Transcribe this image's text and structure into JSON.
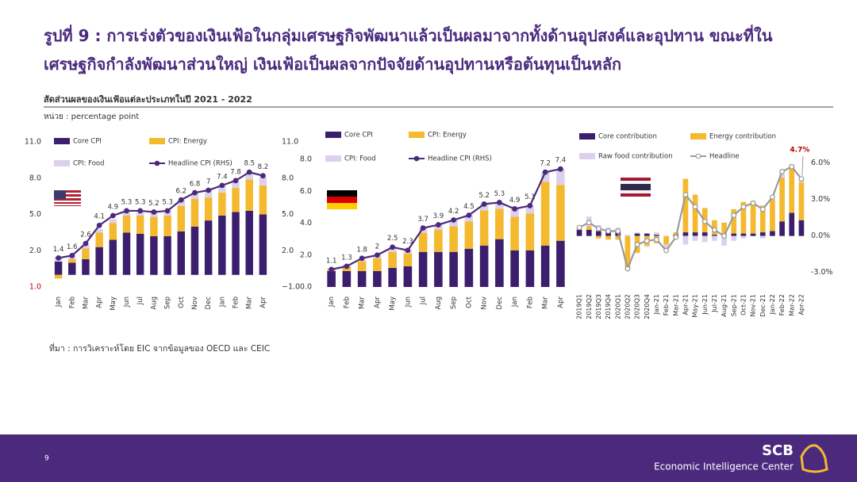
{
  "title_lines": [
    "รูปที่ 9 : การเร่งตัวของเงินเฟ้อในกลุ่มเศรษฐกิจพัฒนาแล้วเป็นผลมาจากทั้งด้านอุปสงค์และอุปทาน  ขณะที่ใน",
    "เศรษฐกิจกำลังพัฒนาส่วนใหญ่  เงินเฟ้อเป็นผลจากปัจจัยด้านอุปทานหรือต้นทุนเป็นหลัก"
  ],
  "subtitle": "สัดส่วนผลของเงินเฟ้อแต่ละประเภทในปี  2021 - 2022",
  "unit": "หน่วย : percentage point",
  "source": "ที่มา : การวิเคราะห์โดย EIC จากข้อมูลของ OECD และ CEIC",
  "page_number": "9",
  "brand": "SCB",
  "brand_sub": "Economic Intelligence Center",
  "chart_data": [
    {
      "type": "bar",
      "stacked": true,
      "data_labels": true,
      "categories": [
        "Jan",
        "Feb",
        "Mar",
        "Apr",
        "May",
        "Jun",
        "Jul",
        "Aug",
        "Sep",
        "Oct",
        "Nov",
        "Dec",
        "Jan",
        "Feb",
        "Mar",
        "Apr"
      ],
      "ylim": [
        -1,
        11
      ],
      "yticks": [
        {
          "value": -1,
          "label": "1.0",
          "color": "#c00000"
        },
        {
          "value": 2,
          "label": "2.0"
        },
        {
          "value": 5,
          "label": "5.0"
        },
        {
          "value": 8,
          "label": "8.0"
        },
        {
          "value": 11,
          "label": "11.0"
        }
      ],
      "y2lim": [
        -1,
        11
      ],
      "y2ticks": [
        {
          "value": -1,
          "label": "−1.0"
        },
        {
          "value": 2,
          "label": "2.0"
        },
        {
          "value": 5,
          "label": "5.0"
        },
        {
          "value": 8,
          "label": "8.0"
        },
        {
          "value": 11,
          "label": "11.0"
        }
      ],
      "series": [
        {
          "name": "Core CPI",
          "color": "#3b1f6e",
          "values": [
            1.1,
            1.0,
            1.3,
            2.3,
            2.9,
            3.5,
            3.4,
            3.2,
            3.2,
            3.6,
            4.0,
            4.5,
            4.9,
            5.2,
            5.3,
            5.0
          ]
        },
        {
          "name": "CPI: Energy",
          "color": "#f4b92e",
          "values": [
            -0.3,
            0.3,
            0.9,
            1.2,
            1.4,
            1.4,
            1.5,
            1.6,
            1.7,
            2.1,
            2.3,
            1.9,
            1.9,
            2.0,
            2.6,
            2.4
          ]
        },
        {
          "name": "CPI: Food",
          "color": "#ddd0ee",
          "values": [
            0.4,
            0.3,
            0.3,
            0.3,
            0.3,
            0.3,
            0.3,
            0.4,
            0.4,
            0.5,
            0.5,
            0.6,
            0.6,
            0.6,
            0.6,
            0.7
          ]
        },
        {
          "name": "Headline CPI (RHS)",
          "color": "#4a2a7a",
          "type": "line",
          "axis": "y2",
          "values": [
            1.4,
            1.6,
            2.6,
            4.1,
            4.9,
            5.3,
            5.3,
            5.2,
            5.3,
            6.2,
            6.8,
            7.0,
            7.4,
            7.8,
            8.5,
            8.2
          ]
        }
      ]
    },
    {
      "type": "bar",
      "stacked": true,
      "data_labels": true,
      "categories": [
        "Jan",
        "Feb",
        "Mar",
        "Apr",
        "May",
        "Jun",
        "Jul",
        "Aug",
        "Sep",
        "Oct",
        "Nov",
        "Dec",
        "Jan",
        "Feb",
        "Mar",
        "Apr"
      ],
      "ylim": [
        0,
        9
      ],
      "yticks": [
        {
          "value": 0,
          "label": "0.0"
        },
        {
          "value": 2,
          "label": "2.0"
        },
        {
          "value": 4,
          "label": "4.0"
        },
        {
          "value": 6,
          "label": "6.0"
        },
        {
          "value": 8,
          "label": "8.0"
        }
      ],
      "series": [
        {
          "name": "Core CPI",
          "color": "#3b1f6e",
          "values": [
            1.0,
            1.0,
            1.0,
            1.0,
            1.2,
            1.3,
            2.2,
            2.2,
            2.2,
            2.4,
            2.6,
            3.0,
            2.3,
            2.3,
            2.6,
            2.9
          ]
        },
        {
          "name": "CPI: Energy",
          "color": "#f4b92e",
          "values": [
            0.1,
            0.3,
            0.6,
            0.8,
            1.0,
            0.8,
            1.2,
            1.4,
            1.6,
            1.7,
            2.2,
            1.9,
            2.1,
            2.3,
            4.0,
            3.5
          ]
        },
        {
          "name": "CPI: Food",
          "color": "#ddd0ee",
          "values": [
            0.1,
            0.1,
            0.1,
            0.2,
            0.2,
            0.2,
            0.3,
            0.3,
            0.4,
            0.4,
            0.4,
            0.4,
            0.5,
            0.5,
            0.6,
            1.0
          ]
        },
        {
          "name": "Headline CPI (RHS)",
          "color": "#4a2a7a",
          "type": "line",
          "values": [
            1.1,
            1.3,
            1.8,
            2.0,
            2.5,
            2.3,
            3.7,
            3.9,
            4.2,
            4.5,
            5.2,
            5.3,
            4.9,
            5.1,
            7.2,
            7.4
          ]
        }
      ]
    },
    {
      "type": "bar",
      "stacked": true,
      "data_labels": false,
      "annotation": "4.7%",
      "categories": [
        "2019Q1",
        "2019Q2",
        "2019Q3",
        "2019Q4",
        "2020Q1",
        "2020Q2",
        "2020Q3",
        "2020Q4",
        "Jan-21",
        "Feb-21",
        "Mar-21",
        "Apr-21",
        "May-21",
        "Jun-21",
        "Jul-21",
        "Aug-21",
        "Sep-21",
        "Oct-21",
        "Nov-21",
        "Dec-21",
        "Jan-22",
        "Feb-22",
        "Mar-22",
        "Apr-22"
      ],
      "ylim": [
        -4,
        8
      ],
      "yticks": [
        {
          "value": -3,
          "label": "-3.0%"
        },
        {
          "value": 0,
          "label": "0.0%"
        },
        {
          "value": 3,
          "label": "3.0%"
        },
        {
          "value": 6,
          "label": "6.0%"
        }
      ],
      "series": [
        {
          "name": "Core contribution",
          "color": "#3b1f6e",
          "values": [
            0.5,
            0.5,
            0.4,
            0.4,
            0.4,
            0.0,
            0.2,
            0.2,
            0.1,
            0.0,
            0.1,
            0.3,
            0.3,
            0.3,
            0.1,
            0.1,
            0.2,
            0.2,
            0.2,
            0.3,
            0.4,
            1.2,
            1.9,
            1.3
          ]
        },
        {
          "name": "Energy contribution",
          "color": "#f4b92e",
          "values": [
            0.2,
            0.3,
            -0.2,
            -0.3,
            -0.3,
            -2.8,
            -1.4,
            -0.8,
            -0.6,
            -0.7,
            0.2,
            4.4,
            3.1,
            2.0,
            1.2,
            1.0,
            2.0,
            2.6,
            2.6,
            2.2,
            2.6,
            3.6,
            3.9,
            3.1
          ]
        },
        {
          "name": "Raw food contribution",
          "color": "#ddd0ee",
          "values": [
            0.0,
            0.8,
            0.5,
            0.3,
            0.3,
            0.1,
            0.1,
            -0.1,
            0.2,
            -0.5,
            -0.2,
            -0.7,
            -0.4,
            -0.5,
            -0.4,
            -0.8,
            -0.4,
            -0.2,
            0.1,
            -0.2,
            0.2,
            0.6,
            0.1,
            0.2
          ]
        },
        {
          "name": "Headline",
          "color": "#9a9a9a",
          "type": "line",
          "marker_fill": "#ffffff",
          "values": [
            0.7,
            1.1,
            0.6,
            0.4,
            0.4,
            -2.7,
            -0.7,
            -0.4,
            -0.3,
            -1.2,
            -0.1,
            3.4,
            2.4,
            1.2,
            0.5,
            0.0,
            1.7,
            2.4,
            2.7,
            2.2,
            3.2,
            5.3,
            5.7,
            4.7
          ]
        }
      ]
    }
  ]
}
